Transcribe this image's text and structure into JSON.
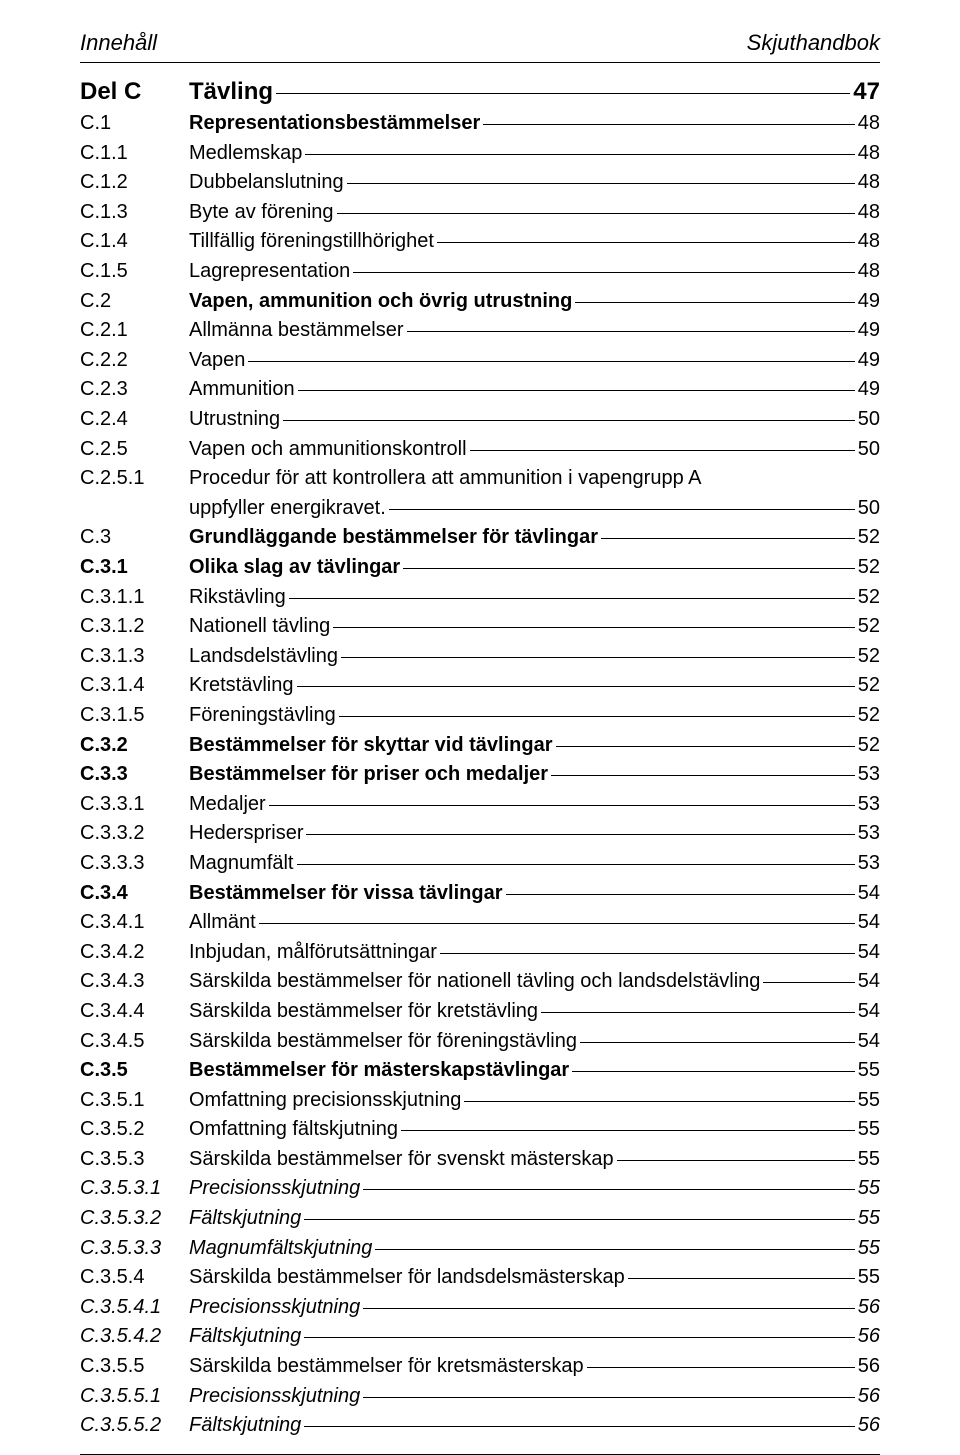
{
  "header": {
    "left": "Innehåll",
    "right": "Skjuthandbok"
  },
  "toc": [
    {
      "lvl": 0,
      "num": "Del C",
      "title": "Tävling",
      "page": "47"
    },
    {
      "lvl": 1,
      "num": "C.1",
      "title": "Representationsbestämmelser",
      "page": "48"
    },
    {
      "lvl": 3,
      "num": "C.1.1",
      "title": "Medlemskap",
      "page": "48"
    },
    {
      "lvl": 3,
      "num": "C.1.2",
      "title": "Dubbelanslutning",
      "page": "48"
    },
    {
      "lvl": 3,
      "num": "C.1.3",
      "title": "Byte av förening",
      "page": "48"
    },
    {
      "lvl": 3,
      "num": "C.1.4",
      "title": "Tillfällig föreningstillhörighet",
      "page": "48"
    },
    {
      "lvl": 3,
      "num": "C.1.5",
      "title": "Lagrepresentation",
      "page": "48"
    },
    {
      "lvl": 1,
      "num": "C.2",
      "title": "Vapen, ammunition och övrig utrustning",
      "page": "49"
    },
    {
      "lvl": 3,
      "num": "C.2.1",
      "title": "Allmänna bestämmelser",
      "page": "49"
    },
    {
      "lvl": 3,
      "num": "C.2.2",
      "title": "Vapen",
      "page": "49"
    },
    {
      "lvl": 3,
      "num": "C.2.3",
      "title": "Ammunition",
      "page": "49"
    },
    {
      "lvl": 3,
      "num": "C.2.4",
      "title": "Utrustning",
      "page": "50"
    },
    {
      "lvl": 3,
      "num": "C.2.5",
      "title": "Vapen och ammunitionskontroll",
      "page": "50"
    },
    {
      "lvl": 3,
      "num": "C.2.5.1",
      "title": "Procedur för att kontrollera att ammunition i vapengrupp A uppfyller energikravet.",
      "page": "50",
      "wrap": true
    },
    {
      "lvl": 1,
      "num": "C.3",
      "title": "Grundläggande bestämmelser för tävlingar",
      "page": "52"
    },
    {
      "lvl": 2,
      "num": "C.3.1",
      "title": "Olika slag av tävlingar",
      "page": "52"
    },
    {
      "lvl": 3,
      "num": "C.3.1.1",
      "title": "Rikstävling",
      "page": "52"
    },
    {
      "lvl": 3,
      "num": "C.3.1.2",
      "title": "Nationell tävling",
      "page": "52"
    },
    {
      "lvl": 3,
      "num": "C.3.1.3",
      "title": "Landsdelstävling",
      "page": "52"
    },
    {
      "lvl": 3,
      "num": "C.3.1.4",
      "title": "Kretstävling",
      "page": "52"
    },
    {
      "lvl": 3,
      "num": "C.3.1.5",
      "title": "Föreningstävling",
      "page": "52"
    },
    {
      "lvl": 2,
      "num": "C.3.2",
      "title": "Bestämmelser för skyttar vid tävlingar",
      "page": "52"
    },
    {
      "lvl": 2,
      "num": "C.3.3",
      "title": "Bestämmelser för priser och medaljer",
      "page": "53"
    },
    {
      "lvl": 3,
      "num": "C.3.3.1",
      "title": "Medaljer",
      "page": "53"
    },
    {
      "lvl": 3,
      "num": "C.3.3.2",
      "title": "Hederspriser",
      "page": "53"
    },
    {
      "lvl": 3,
      "num": "C.3.3.3",
      "title": "Magnumfält",
      "page": "53"
    },
    {
      "lvl": 2,
      "num": "C.3.4",
      "title": "Bestämmelser för vissa tävlingar",
      "page": "54"
    },
    {
      "lvl": 3,
      "num": "C.3.4.1",
      "title": "Allmänt",
      "page": "54"
    },
    {
      "lvl": 3,
      "num": "C.3.4.2",
      "title": "Inbjudan, målförutsättningar",
      "page": "54"
    },
    {
      "lvl": 3,
      "num": "C.3.4.3",
      "title": "Särskilda bestämmelser för nationell tävling och landsdelstävling",
      "page": "54"
    },
    {
      "lvl": 3,
      "num": "C.3.4.4",
      "title": "Särskilda bestämmelser för kretstävling",
      "page": "54"
    },
    {
      "lvl": 3,
      "num": "C.3.4.5",
      "title": "Särskilda bestämmelser för föreningstävling",
      "page": "54"
    },
    {
      "lvl": 2,
      "num": "C.3.5",
      "title": "Bestämmelser för mästerskapstävlingar",
      "page": "55"
    },
    {
      "lvl": 3,
      "num": "C.3.5.1",
      "title": "Omfattning precisionsskjutning",
      "page": "55"
    },
    {
      "lvl": 3,
      "num": "C.3.5.2",
      "title": "Omfattning fältskjutning",
      "page": "55"
    },
    {
      "lvl": 3,
      "num": "C.3.5.3",
      "title": "Särskilda bestämmelser för svenskt mästerskap",
      "page": "55"
    },
    {
      "lvl": 4,
      "num": "C.3.5.3.1",
      "title": "Precisionsskjutning",
      "page": "55"
    },
    {
      "lvl": 4,
      "num": "C.3.5.3.2",
      "title": "Fältskjutning",
      "page": "55"
    },
    {
      "lvl": 4,
      "num": "C.3.5.3.3",
      "title": "Magnumfältskjutning",
      "page": "55"
    },
    {
      "lvl": 3,
      "num": "C.3.5.4",
      "title": "Särskilda bestämmelser för landsdelsmästerskap",
      "page": "55"
    },
    {
      "lvl": 4,
      "num": "C.3.5.4.1",
      "title": "Precisionsskjutning",
      "page": "56"
    },
    {
      "lvl": 4,
      "num": "C.3.5.4.2",
      "title": "Fältskjutning",
      "page": "56"
    },
    {
      "lvl": 3,
      "num": "C.3.5.5",
      "title": "Särskilda bestämmelser för kretsmästerskap",
      "page": "56"
    },
    {
      "lvl": 4,
      "num": "C.3.5.5.1",
      "title": "Precisionsskjutning",
      "page": "56"
    },
    {
      "lvl": 4,
      "num": "C.3.5.5.2",
      "title": "Fältskjutning",
      "page": "56"
    }
  ]
}
